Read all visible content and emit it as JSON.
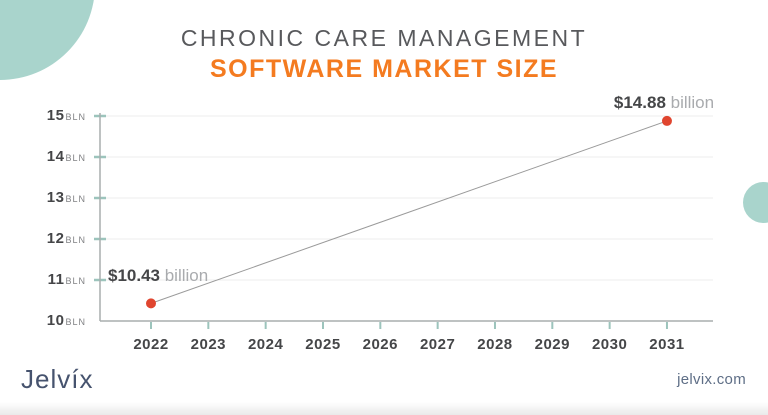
{
  "title": {
    "line1": "CHRONIC CARE MANAGEMENT",
    "line2": "SOFTWARE MARKET SIZE"
  },
  "chart_data": {
    "type": "line",
    "title": "CHRONIC CARE MANAGEMENT SOFTWARE MARKET SIZE",
    "x_ticks": [
      2022,
      2023,
      2024,
      2025,
      2026,
      2027,
      2028,
      2029,
      2030,
      2031
    ],
    "y_ticks": [
      10,
      11,
      12,
      13,
      14,
      15
    ],
    "y_unit": "BLN",
    "ylim": [
      10,
      15
    ],
    "xlabel": "",
    "ylabel": "",
    "grid": "horizontal",
    "legend": "none",
    "points": [
      {
        "x": 2022,
        "y": 10.43,
        "label_value": "$10.43",
        "label_unit": " billion"
      },
      {
        "x": 2031,
        "y": 14.88,
        "label_value": "$14.88",
        "label_unit": " billion"
      }
    ]
  },
  "footer": {
    "logo": "Jelvíx",
    "website": "jelvix.com"
  },
  "colors": {
    "accent_orange": "#f47b20",
    "title_gray": "#58595c",
    "teal_circle": "#a9d4cc",
    "tick_teal": "#9cc4bc",
    "axis_gray": "#a9aeae",
    "gridline": "#ededed",
    "line_gray": "#9a9a9a",
    "point_red": "#e0452f",
    "label_dark": "#454648",
    "annotation_light": "#a9abae",
    "unit_gray": "#808184",
    "logo_navy": "#46536e",
    "website_blue": "#5e6e86"
  }
}
